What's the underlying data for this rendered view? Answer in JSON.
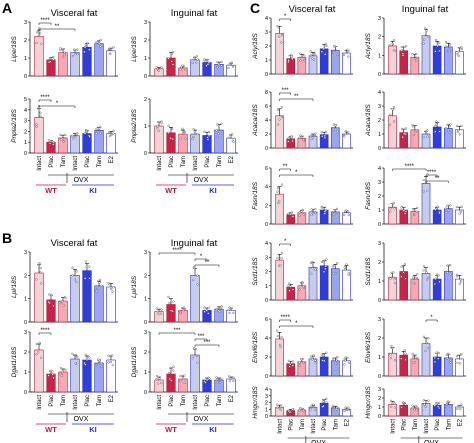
{
  "panel_labels": [
    "A",
    "B",
    "C"
  ],
  "group_labels": {
    "wt": "WT",
    "ki": "KI",
    "ovx": "OVX"
  },
  "categories": [
    "Intact",
    "Plac",
    "Tam",
    "Intact",
    "Plac",
    "Tam",
    "E2"
  ],
  "colors": {
    "wt_intact": "#f0d4d6",
    "wt_plac": "#c8244a",
    "wt_tam": "#f4a9b5",
    "ki_intact": "#c5cde8",
    "ki_plac": "#2f3fd3",
    "ki_tam": "#9aa5ef",
    "ki_e2": "#ffffff",
    "wt_edge": "#c0173c",
    "ki_edge": "#2a2acd"
  },
  "chart_data": [
    {
      "type": "bar",
      "panel": "A",
      "title": "Visceral fat",
      "ylabel": "Lipe/18S",
      "ylim": [
        0,
        3
      ],
      "yticks": [
        0,
        1,
        2,
        3
      ],
      "categories": [
        "Intact",
        "Plac",
        "Tam",
        "Intact",
        "Plac",
        "Tam",
        "E2"
      ],
      "values": [
        2.2,
        0.9,
        1.3,
        1.3,
        1.6,
        1.8,
        1.4
      ],
      "errors": [
        0.35,
        0.12,
        0.2,
        0.15,
        0.2,
        0.15,
        0.15
      ],
      "sig": [
        [
          0,
          1,
          "****"
        ],
        [
          0,
          3,
          "**"
        ]
      ]
    },
    {
      "type": "bar",
      "panel": "A",
      "title": "Inguinal fat",
      "ylabel": "Lipe/18S",
      "ylim": [
        0,
        3
      ],
      "yticks": [
        0,
        1,
        2,
        3
      ],
      "categories": [
        "Intact",
        "Plac",
        "Tam",
        "Intact",
        "Plac",
        "Tam",
        "E2"
      ],
      "values": [
        0.4,
        1.0,
        0.45,
        0.9,
        0.75,
        0.65,
        0.6
      ],
      "errors": [
        0.08,
        0.3,
        0.1,
        0.15,
        0.15,
        0.12,
        0.12
      ],
      "sig": []
    },
    {
      "type": "bar",
      "panel": "A",
      "ylabel": "Pnpla2/18S",
      "ylim": [
        0,
        5
      ],
      "yticks": [
        0,
        1,
        2,
        3,
        4,
        5
      ],
      "categories": [
        "Intact",
        "Plac",
        "Tam",
        "Intact",
        "Plac",
        "Tam",
        "E2"
      ],
      "values": [
        3.3,
        1.0,
        1.4,
        1.6,
        1.8,
        2.1,
        1.8
      ],
      "errors": [
        0.8,
        0.15,
        0.25,
        0.2,
        0.25,
        0.25,
        0.2
      ],
      "sig": [
        [
          0,
          1,
          "****"
        ],
        [
          0,
          3,
          "*"
        ]
      ]
    },
    {
      "type": "bar",
      "panel": "A",
      "ylabel": "Pnpla2/18S",
      "ylim": [
        0,
        2
      ],
      "yticks": [
        0,
        1,
        2
      ],
      "categories": [
        "Intact",
        "Plac",
        "Tam",
        "Intact",
        "Plac",
        "Tam",
        "E2"
      ],
      "values": [
        1.0,
        0.75,
        0.7,
        0.7,
        0.65,
        0.85,
        0.55
      ],
      "errors": [
        0.15,
        0.2,
        0.15,
        0.15,
        0.12,
        0.2,
        0.12
      ],
      "sig": []
    },
    {
      "type": "bar",
      "panel": "B",
      "title": "Visceral fat",
      "ylabel": "Lpl/18S",
      "ylim": [
        0,
        3
      ],
      "yticks": [
        0,
        1,
        2,
        3
      ],
      "categories": [
        "Intact",
        "Plac",
        "Tam",
        "Intact",
        "Plac",
        "Tam",
        "E2"
      ],
      "values": [
        2.1,
        0.95,
        0.9,
        2.0,
        2.2,
        1.55,
        1.5
      ],
      "errors": [
        0.35,
        0.2,
        0.15,
        0.25,
        0.3,
        0.2,
        0.15
      ],
      "sig": []
    },
    {
      "type": "bar",
      "panel": "B",
      "title": "Inguinal fat",
      "ylabel": "Lpl/18S",
      "ylim": [
        0,
        3
      ],
      "yticks": [
        0,
        1,
        2,
        3
      ],
      "categories": [
        "Intact",
        "Plac",
        "Tam",
        "Intact",
        "Plac",
        "Tam",
        "E2"
      ],
      "values": [
        0.45,
        0.75,
        0.5,
        2.0,
        0.5,
        0.55,
        0.5
      ],
      "errors": [
        0.1,
        0.25,
        0.1,
        0.3,
        0.1,
        0.1,
        0.1
      ],
      "sig": [
        [
          0,
          3,
          "****"
        ],
        [
          3,
          4,
          "*"
        ],
        [
          3,
          5,
          "**"
        ]
      ]
    },
    {
      "type": "bar",
      "panel": "B",
      "ylabel": "Dgat1/18S",
      "ylim": [
        0,
        3
      ],
      "yticks": [
        0,
        1,
        2,
        3
      ],
      "categories": [
        "Intact",
        "Plac",
        "Tam",
        "Intact",
        "Plac",
        "Tam",
        "E2"
      ],
      "values": [
        2.1,
        0.9,
        1.0,
        1.65,
        1.6,
        1.45,
        1.6
      ],
      "errors": [
        0.3,
        0.15,
        0.15,
        0.2,
        0.2,
        0.15,
        0.2
      ],
      "sig": [
        [
          0,
          1,
          "****"
        ]
      ]
    },
    {
      "type": "bar",
      "panel": "B",
      "ylabel": "Dgat1/18S",
      "ylim": [
        0,
        3
      ],
      "yticks": [
        0,
        1,
        2,
        3
      ],
      "categories": [
        "Intact",
        "Plac",
        "Tam",
        "Intact",
        "Plac",
        "Tam",
        "E2"
      ],
      "values": [
        0.6,
        0.9,
        0.65,
        1.85,
        0.6,
        0.6,
        0.65
      ],
      "errors": [
        0.15,
        0.3,
        0.15,
        0.3,
        0.1,
        0.1,
        0.1
      ],
      "sig": [
        [
          0,
          3,
          "***"
        ],
        [
          3,
          4,
          "***"
        ],
        [
          3,
          5,
          "***"
        ]
      ]
    },
    {
      "type": "bar",
      "panel": "C",
      "title": "Visceral fat",
      "ylabel": "Acly/18S",
      "ylim": [
        0,
        4
      ],
      "yticks": [
        0,
        1,
        2,
        3,
        4
      ],
      "categories": [
        "Intact",
        "Plac",
        "Tam",
        "Intact",
        "Plac",
        "Tam",
        "E2"
      ],
      "values": [
        2.9,
        1.1,
        1.2,
        1.3,
        1.8,
        1.7,
        1.5
      ],
      "errors": [
        0.5,
        0.2,
        0.2,
        0.25,
        0.3,
        0.25,
        0.2
      ],
      "sig": [
        [
          0,
          1,
          "*"
        ]
      ]
    },
    {
      "type": "bar",
      "panel": "C",
      "title": "Inguinal fat",
      "ylabel": "Acly/18S",
      "ylim": [
        0,
        3
      ],
      "yticks": [
        0,
        1,
        2,
        3
      ],
      "categories": [
        "Intact",
        "Plac",
        "Tam",
        "Intact",
        "Plac",
        "Tam",
        "E2"
      ],
      "values": [
        1.5,
        1.25,
        0.9,
        2.05,
        1.5,
        1.45,
        1.2
      ],
      "errors": [
        0.25,
        0.2,
        0.15,
        0.35,
        0.25,
        0.2,
        0.2
      ],
      "sig": []
    },
    {
      "type": "bar",
      "panel": "C",
      "ylabel": "Acaca/18S",
      "ylim": [
        0,
        8
      ],
      "yticks": [
        0,
        2,
        4,
        6,
        8
      ],
      "categories": [
        "Intact",
        "Plac",
        "Tam",
        "Intact",
        "Plac",
        "Tam",
        "E2"
      ],
      "values": [
        4.6,
        1.3,
        1.4,
        1.7,
        1.9,
        2.9,
        2.0
      ],
      "errors": [
        1.0,
        0.3,
        0.3,
        0.3,
        0.35,
        0.4,
        0.3
      ],
      "sig": [
        [
          0,
          1,
          "***"
        ],
        [
          0,
          3,
          "**"
        ]
      ]
    },
    {
      "type": "bar",
      "panel": "C",
      "ylabel": "Acaca/18S",
      "ylim": [
        0,
        4
      ],
      "yticks": [
        0,
        1,
        2,
        3,
        4
      ],
      "categories": [
        "Intact",
        "Plac",
        "Tam",
        "Intact",
        "Plac",
        "Tam",
        "E2"
      ],
      "values": [
        2.3,
        1.1,
        1.3,
        1.0,
        1.5,
        1.4,
        1.3
      ],
      "errors": [
        0.5,
        0.25,
        0.3,
        0.2,
        0.3,
        0.25,
        0.25
      ],
      "sig": []
    },
    {
      "type": "bar",
      "panel": "C",
      "ylabel": "Fasn/18S",
      "ylim": [
        0,
        6
      ],
      "yticks": [
        0,
        2,
        4,
        6
      ],
      "categories": [
        "Intact",
        "Plac",
        "Tam",
        "Intact",
        "Plac",
        "Tam",
        "E2"
      ],
      "values": [
        3.2,
        1.0,
        1.2,
        1.3,
        1.5,
        1.3,
        1.2
      ],
      "errors": [
        0.8,
        0.2,
        0.25,
        0.25,
        0.3,
        0.25,
        0.2
      ],
      "sig": [
        [
          0,
          1,
          "**"
        ],
        [
          0,
          3,
          "*"
        ]
      ]
    },
    {
      "type": "bar",
      "panel": "C",
      "ylabel": "Fasn/18S",
      "ylim": [
        0,
        4
      ],
      "yticks": [
        0,
        1,
        2,
        3,
        4
      ],
      "categories": [
        "Intact",
        "Plac",
        "Tam",
        "Intact",
        "Plac",
        "Tam",
        "E2"
      ],
      "values": [
        1.2,
        1.0,
        0.9,
        2.9,
        1.0,
        1.1,
        1.0
      ],
      "errors": [
        0.25,
        0.2,
        0.2,
        0.5,
        0.2,
        0.2,
        0.2
      ],
      "sig": [
        [
          0,
          3,
          "****"
        ],
        [
          3,
          4,
          "****"
        ],
        [
          3,
          5,
          "**"
        ]
      ]
    },
    {
      "type": "bar",
      "panel": "C",
      "ylabel": "Scd1/18S",
      "ylim": [
        0,
        4
      ],
      "yticks": [
        0,
        1,
        2,
        3,
        4
      ],
      "categories": [
        "Intact",
        "Plac",
        "Tam",
        "Intact",
        "Plac",
        "Tam",
        "E2"
      ],
      "values": [
        2.8,
        0.9,
        1.0,
        2.3,
        2.4,
        2.2,
        2.1
      ],
      "errors": [
        0.4,
        0.2,
        0.2,
        0.35,
        0.35,
        0.3,
        0.3
      ],
      "sig": [
        [
          0,
          1,
          "*"
        ]
      ]
    },
    {
      "type": "bar",
      "panel": "C",
      "ylabel": "Scd1/18S",
      "ylim": [
        0,
        3
      ],
      "yticks": [
        0,
        1,
        2,
        3
      ],
      "categories": [
        "Intact",
        "Plac",
        "Tam",
        "Intact",
        "Plac",
        "Tam",
        "E2"
      ],
      "values": [
        1.2,
        1.5,
        1.1,
        1.4,
        1.1,
        1.5,
        1.1
      ],
      "errors": [
        0.25,
        0.3,
        0.2,
        0.3,
        0.2,
        0.3,
        0.2
      ],
      "sig": []
    },
    {
      "type": "bar",
      "panel": "C",
      "ylabel": "Elovl6/18S",
      "ylim": [
        0,
        6
      ],
      "yticks": [
        0,
        2,
        4,
        6
      ],
      "categories": [
        "Intact",
        "Plac",
        "Tam",
        "Intact",
        "Plac",
        "Tam",
        "E2"
      ],
      "values": [
        3.9,
        1.3,
        1.5,
        1.8,
        2.0,
        1.6,
        1.6
      ],
      "errors": [
        0.7,
        0.25,
        0.3,
        0.3,
        0.35,
        0.3,
        0.3
      ],
      "sig": [
        [
          0,
          1,
          "****"
        ],
        [
          0,
          3,
          "*"
        ]
      ]
    },
    {
      "type": "bar",
      "panel": "C",
      "ylabel": "Elovl6/18S",
      "ylim": [
        0,
        3
      ],
      "yticks": [
        0,
        1,
        2,
        3
      ],
      "categories": [
        "Intact",
        "Plac",
        "Tam",
        "Intact",
        "Plac",
        "Tam",
        "E2"
      ],
      "values": [
        1.2,
        1.1,
        0.9,
        1.7,
        1.0,
        0.95,
        0.9
      ],
      "errors": [
        0.3,
        0.2,
        0.2,
        0.3,
        0.2,
        0.2,
        0.2
      ],
      "sig": [
        [
          3,
          4,
          "*"
        ]
      ]
    },
    {
      "type": "bar",
      "panel": "C",
      "ylabel": "Hmgcr/18S",
      "ylim": [
        0,
        4
      ],
      "yticks": [
        0,
        1,
        2,
        3,
        4
      ],
      "categories": [
        "Intact",
        "Plac",
        "Tam",
        "Intact",
        "Plac",
        "Tam",
        "E2"
      ],
      "values": [
        1.3,
        0.8,
        0.9,
        1.3,
        1.9,
        1.2,
        1.0
      ],
      "errors": [
        0.3,
        0.2,
        0.2,
        0.3,
        0.5,
        0.25,
        0.2
      ],
      "sig": []
    },
    {
      "type": "bar",
      "panel": "C",
      "ylabel": "Hmgcr/18S",
      "ylim": [
        0,
        3
      ],
      "yticks": [
        0,
        1,
        2,
        3
      ],
      "categories": [
        "Intact",
        "Plac",
        "Tam",
        "Intact",
        "Plac",
        "Tam",
        "E2"
      ],
      "values": [
        1.3,
        1.2,
        0.9,
        1.4,
        1.2,
        1.3,
        1.0
      ],
      "errors": [
        0.3,
        0.25,
        0.2,
        0.3,
        0.25,
        0.25,
        0.2
      ],
      "sig": []
    }
  ]
}
